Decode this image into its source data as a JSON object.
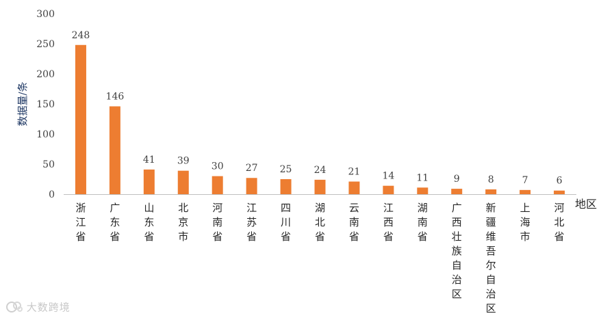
{
  "chart_data": {
    "type": "bar",
    "categories": [
      "浙江省",
      "广东省",
      "山东省",
      "北京市",
      "河南省",
      "江苏省",
      "四川省",
      "湖北省",
      "云南省",
      "江西省",
      "湖南省",
      "广西壮族自治区",
      "新疆维吾尔自治区",
      "上海市",
      "河北省"
    ],
    "values": [
      248,
      146,
      41,
      39,
      30,
      27,
      25,
      24,
      21,
      14,
      11,
      9,
      8,
      7,
      6
    ],
    "title": "",
    "xlabel": "地区",
    "ylabel": "数据量/条",
    "ylim": [
      0,
      300
    ],
    "yticks": [
      0,
      50,
      100,
      150,
      200,
      250,
      300
    ],
    "grid": false,
    "legend": "none",
    "data_labels": true,
    "bar_color": "#ed7d31",
    "axis_color": "#bfbfbf"
  },
  "watermark": {
    "text": "大数跨境",
    "icon": "globe-logo-icon"
  }
}
